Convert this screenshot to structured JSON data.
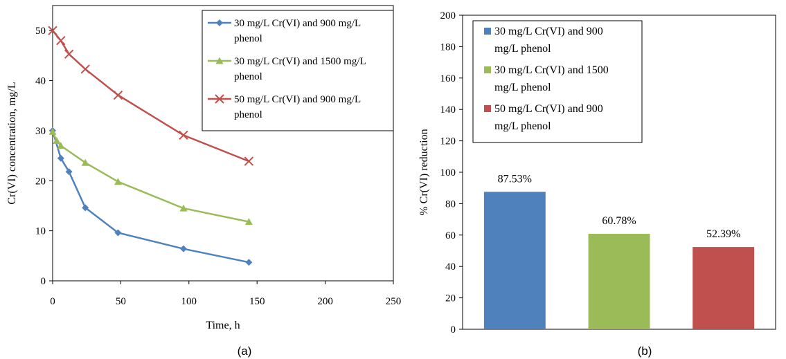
{
  "panel_labels": [
    "(a)",
    "(b)"
  ],
  "colors": {
    "blue": "#4f81bd",
    "green": "#9bbb59",
    "red": "#c0504d",
    "axis": "#000000",
    "legend_border": "#000000"
  },
  "chart_data": [
    {
      "type": "line",
      "xlabel": "Time, h",
      "ylabel": "Cr(VI) concentration, mg/L",
      "xlim": [
        0,
        250
      ],
      "ylim": [
        0,
        55
      ],
      "xticks": [
        0,
        50,
        100,
        150,
        200,
        250
      ],
      "yticks": [
        0,
        10,
        20,
        30,
        40,
        50
      ],
      "grid": false,
      "legend_position": "top-right",
      "series": [
        {
          "name": "30 mg/L Cr(VI) and 900 mg/L phenol",
          "legend_lines": [
            "30 mg/L Cr(VI) and 900 mg/L",
            "phenol"
          ],
          "marker": "diamond",
          "color": "#4f81bd",
          "x": [
            0,
            6,
            12,
            24,
            48,
            96,
            144
          ],
          "y": [
            30,
            24.5,
            21.8,
            14.6,
            9.6,
            6.4,
            3.7
          ]
        },
        {
          "name": "30 mg/L Cr(VI) and 1500 mg/L phenol",
          "legend_lines": [
            "30 mg/L Cr(VI) and 1500 mg/L",
            "phenol"
          ],
          "marker": "triangle",
          "color": "#9bbb59",
          "x": [
            0,
            3,
            6,
            24,
            48,
            96,
            144
          ],
          "y": [
            29.8,
            28,
            27,
            23.6,
            19.8,
            14.5,
            11.8
          ]
        },
        {
          "name": "50 mg/L Cr(VI) and 900 mg/L phenol",
          "legend_lines": [
            "50 mg/L Cr(VI) and 900 mg/L",
            "phenol"
          ],
          "marker": "x",
          "color": "#c0504d",
          "x": [
            0,
            6,
            12,
            24,
            48,
            96,
            144
          ],
          "y": [
            50,
            48,
            45.3,
            42.3,
            37.1,
            29.1,
            23.9
          ]
        }
      ]
    },
    {
      "type": "bar",
      "ylabel": "% Cr(VI) reduction",
      "ylim": [
        0,
        200
      ],
      "yticks": [
        0,
        20,
        40,
        60,
        80,
        100,
        120,
        140,
        160,
        180,
        200
      ],
      "grid": false,
      "legend_position": "top-left",
      "categories": [
        "30 mg/L Cr(VI) and 900 mg/L phenol",
        "30 mg/L Cr(VI) and 1500 mg/L phenol",
        "50 mg/L Cr(VI) and 900 mg/L phenol"
      ],
      "legend_lines": [
        [
          "30 mg/L Cr(VI) and 900",
          "mg/L phenol"
        ],
        [
          "30 mg/L Cr(VI) and 1500",
          "mg/L phenol"
        ],
        [
          "50 mg/L Cr(VI) and 900",
          "mg/L phenol"
        ]
      ],
      "values": [
        87.53,
        60.78,
        52.39
      ],
      "data_labels": [
        "87.53%",
        "60.78%",
        "52.39%"
      ],
      "bar_colors": [
        "#4f81bd",
        "#9bbb59",
        "#c0504d"
      ]
    }
  ]
}
